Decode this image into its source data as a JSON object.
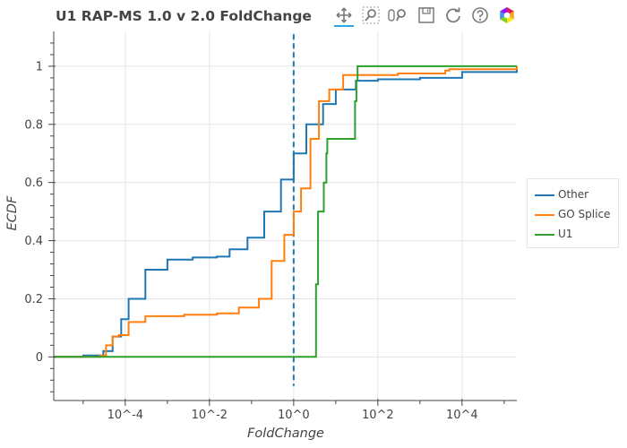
{
  "chart_data": {
    "type": "line",
    "title": "U1 RAP-MS 1.0 v 2.0 FoldChange",
    "xlabel": "FoldChange",
    "ylabel": "ECDF",
    "xscale": "log",
    "xlim": [
      2e-06,
      200000.0
    ],
    "ylim": [
      -0.15,
      1.12
    ],
    "grid": true,
    "legend_position": "right",
    "x_tick_labels": [
      "10^-4",
      "10^-2",
      "10^0",
      "10^2",
      "10^4"
    ],
    "y_tick_labels": [
      "0",
      "0.2",
      "0.4",
      "0.6",
      "0.8",
      "1"
    ],
    "reference_line": {
      "x": 1,
      "style": "dashed",
      "color": "#1f77b4"
    },
    "series": [
      {
        "name": "Other",
        "color": "#1f77b4",
        "x": [
          2e-06,
          1e-05,
          3e-05,
          5e-05,
          8e-05,
          0.00012,
          0.0003,
          0.001,
          0.004,
          0.015,
          0.03,
          0.08,
          0.2,
          0.5,
          1.0,
          2.0,
          5.0,
          10.0,
          30.0,
          100.0,
          1000.0,
          10000.0,
          200000.0
        ],
        "y": [
          0.0,
          0.005,
          0.02,
          0.07,
          0.13,
          0.2,
          0.3,
          0.335,
          0.342,
          0.345,
          0.37,
          0.41,
          0.5,
          0.61,
          0.7,
          0.8,
          0.87,
          0.92,
          0.95,
          0.955,
          0.96,
          0.98,
          1.0
        ]
      },
      {
        "name": "GO Splice",
        "color": "#ff7f0e",
        "x": [
          2e-06,
          2.5e-05,
          3.5e-05,
          5e-05,
          7e-05,
          0.00012,
          0.0003,
          0.0025,
          0.015,
          0.05,
          0.15,
          0.3,
          0.6,
          1.0,
          1.5,
          2.5,
          4.0,
          7.0,
          15.0,
          300.0,
          4000.0,
          5000.0,
          200000.0
        ],
        "y": [
          0.0,
          0.005,
          0.04,
          0.07,
          0.075,
          0.12,
          0.14,
          0.145,
          0.15,
          0.17,
          0.2,
          0.33,
          0.42,
          0.5,
          0.58,
          0.75,
          0.88,
          0.92,
          0.97,
          0.975,
          0.985,
          0.99,
          1.0
        ]
      },
      {
        "name": "U1",
        "color": "#2ca02c",
        "x": [
          2e-06,
          2.9,
          3.4,
          3.8,
          5.0,
          5.2,
          6.0,
          6.3,
          28.0,
          28.8,
          31.0,
          33.0,
          200000.0
        ],
        "y": [
          0.0,
          0.0,
          0.25,
          0.5,
          0.5,
          0.6,
          0.7,
          0.75,
          0.75,
          0.88,
          0.95,
          1.0,
          1.0
        ]
      }
    ]
  },
  "toolbar": {
    "tools": [
      "pan-icon",
      "box-zoom-icon",
      "wheel-zoom-icon",
      "save-icon",
      "reset-icon",
      "help-icon",
      "bokeh-logo-icon"
    ]
  }
}
